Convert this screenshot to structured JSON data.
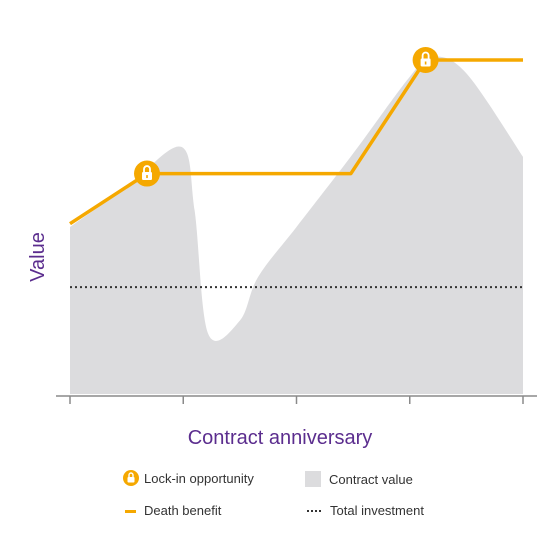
{
  "chart_data": {
    "type": "area",
    "title": "",
    "xlabel": "Contract anniversary",
    "ylabel": "Value",
    "x_ticks": [
      "",
      "",
      "",
      "",
      ""
    ],
    "grid": false,
    "legend_position": "bottom",
    "legend": [
      {
        "label": "Lock-in opportunity",
        "marker": "lock-icon"
      },
      {
        "label": "Contract value",
        "marker": "grey-square"
      },
      {
        "label": "Death benefit",
        "marker": "orange-dash"
      },
      {
        "label": "Total investment",
        "marker": "dotted-line"
      }
    ],
    "xlim": [
      0,
      4
    ],
    "ylim": [
      0,
      100
    ],
    "series": [
      {
        "name": "Contract value",
        "kind": "area",
        "x": [
          0,
          0.5,
          0.98,
          1.1,
          1.22,
          1.5,
          1.66,
          2.0,
          2.5,
          3.0,
          3.2,
          3.5,
          4.0
        ],
        "y": [
          50,
          62,
          74,
          55,
          18,
          22,
          35,
          50,
          72,
          95,
          101,
          96,
          71
        ]
      },
      {
        "name": "Death benefit",
        "kind": "line",
        "x": [
          0,
          0.68,
          2.48,
          3.14,
          4.0
        ],
        "y": [
          51,
          66,
          66,
          100,
          100
        ]
      },
      {
        "name": "Total investment",
        "kind": "dotted",
        "x": [
          0,
          4
        ],
        "y": [
          32,
          32
        ]
      }
    ],
    "lock_in_points": [
      {
        "x": 0.68,
        "y": 66
      },
      {
        "x": 3.14,
        "y": 100
      }
    ],
    "colors": {
      "area": "#dcdcde",
      "death_benefit": "#f5a800",
      "investment": "#333333",
      "axis": "#8a8a8a",
      "label": "#5b2d8e"
    }
  }
}
